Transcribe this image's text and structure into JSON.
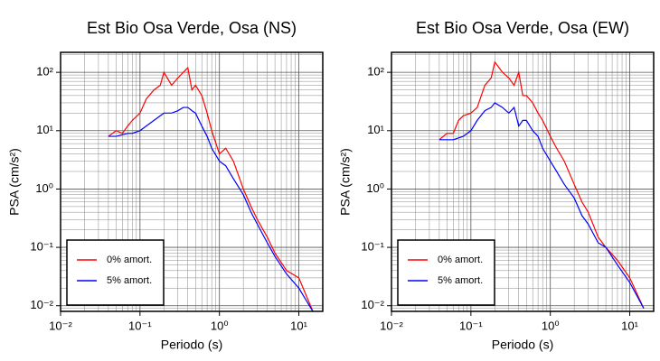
{
  "chart_data": [
    {
      "type": "line",
      "title": "Est Bio Osa Verde, Osa (NS)",
      "xlabel": "Periodo (s)",
      "ylabel": "PSA (cm/s²)",
      "log_x": true,
      "log_y": true,
      "grid": true,
      "legend": "lower left",
      "xlim": [
        0.01,
        20
      ],
      "ylim": [
        0.008,
        220
      ],
      "xticks": [
        {
          "value": 0.01,
          "label": "10⁻²"
        },
        {
          "value": 0.1,
          "label": "10⁻¹"
        },
        {
          "value": 1,
          "label": "10⁰"
        },
        {
          "value": 10,
          "label": "10¹"
        }
      ],
      "yticks": [
        {
          "value": 0.01,
          "label": "10⁻²"
        },
        {
          "value": 0.1,
          "label": "10⁻¹"
        },
        {
          "value": 1,
          "label": "10⁰"
        },
        {
          "value": 10,
          "label": "10¹"
        },
        {
          "value": 100,
          "label": "10²"
        }
      ],
      "x": [
        0.04,
        0.05,
        0.06,
        0.07,
        0.08,
        0.1,
        0.12,
        0.15,
        0.18,
        0.2,
        0.25,
        0.3,
        0.35,
        0.4,
        0.45,
        0.5,
        0.6,
        0.7,
        0.8,
        1.0,
        1.2,
        1.5,
        2.0,
        2.5,
        3,
        4,
        5,
        7,
        10,
        15
      ],
      "series": [
        {
          "name": "0% amort.",
          "color": "#ff0000",
          "values": [
            8,
            10,
            9,
            12,
            15,
            20,
            35,
            50,
            60,
            100,
            60,
            80,
            100,
            120,
            50,
            60,
            40,
            20,
            10,
            4,
            5,
            3,
            1,
            0.5,
            0.3,
            0.15,
            0.08,
            0.04,
            0.03,
            0.008
          ]
        },
        {
          "name": "5% amort.",
          "color": "#0000ff",
          "values": [
            8,
            8,
            8.5,
            9,
            9,
            10,
            12,
            15,
            18,
            20,
            20,
            22,
            25,
            25,
            22,
            20,
            12,
            8,
            5,
            3,
            2.5,
            1.5,
            0.8,
            0.4,
            0.25,
            0.12,
            0.07,
            0.035,
            0.02,
            0.008
          ]
        }
      ]
    },
    {
      "type": "line",
      "title": "Est Bio Osa Verde, Osa (EW)",
      "xlabel": "Periodo (s)",
      "ylabel": "PSA (cm/s²)",
      "log_x": true,
      "log_y": true,
      "grid": true,
      "legend": "lower left",
      "xlim": [
        0.01,
        20
      ],
      "ylim": [
        0.008,
        220
      ],
      "xticks": [
        {
          "value": 0.01,
          "label": "10⁻²"
        },
        {
          "value": 0.1,
          "label": "10⁻¹"
        },
        {
          "value": 1,
          "label": "10⁰"
        },
        {
          "value": 10,
          "label": "10¹"
        }
      ],
      "yticks": [
        {
          "value": 0.01,
          "label": "10⁻²"
        },
        {
          "value": 0.1,
          "label": "10⁻¹"
        },
        {
          "value": 1,
          "label": "10⁰"
        },
        {
          "value": 10,
          "label": "10¹"
        },
        {
          "value": 100,
          "label": "10²"
        }
      ],
      "x": [
        0.04,
        0.05,
        0.06,
        0.07,
        0.08,
        0.1,
        0.12,
        0.15,
        0.18,
        0.2,
        0.25,
        0.3,
        0.35,
        0.4,
        0.45,
        0.5,
        0.6,
        0.7,
        0.8,
        1.0,
        1.2,
        1.5,
        2.0,
        2.5,
        3,
        4,
        5,
        7,
        10,
        15
      ],
      "series": [
        {
          "name": "0% amort.",
          "color": "#ff0000",
          "values": [
            7,
            9,
            9,
            15,
            18,
            20,
            25,
            60,
            80,
            150,
            100,
            80,
            60,
            100,
            40,
            40,
            30,
            20,
            15,
            8,
            5,
            3,
            1.2,
            0.6,
            0.4,
            0.15,
            0.1,
            0.06,
            0.03,
            0.009
          ]
        },
        {
          "name": "5% amort.",
          "color": "#0000ff",
          "values": [
            7,
            7,
            7,
            7.5,
            8,
            10,
            15,
            22,
            25,
            30,
            25,
            20,
            25,
            12,
            15,
            15,
            10,
            8,
            5,
            3,
            2,
            1.2,
            0.7,
            0.35,
            0.25,
            0.12,
            0.1,
            0.05,
            0.025,
            0.009
          ]
        }
      ]
    }
  ]
}
